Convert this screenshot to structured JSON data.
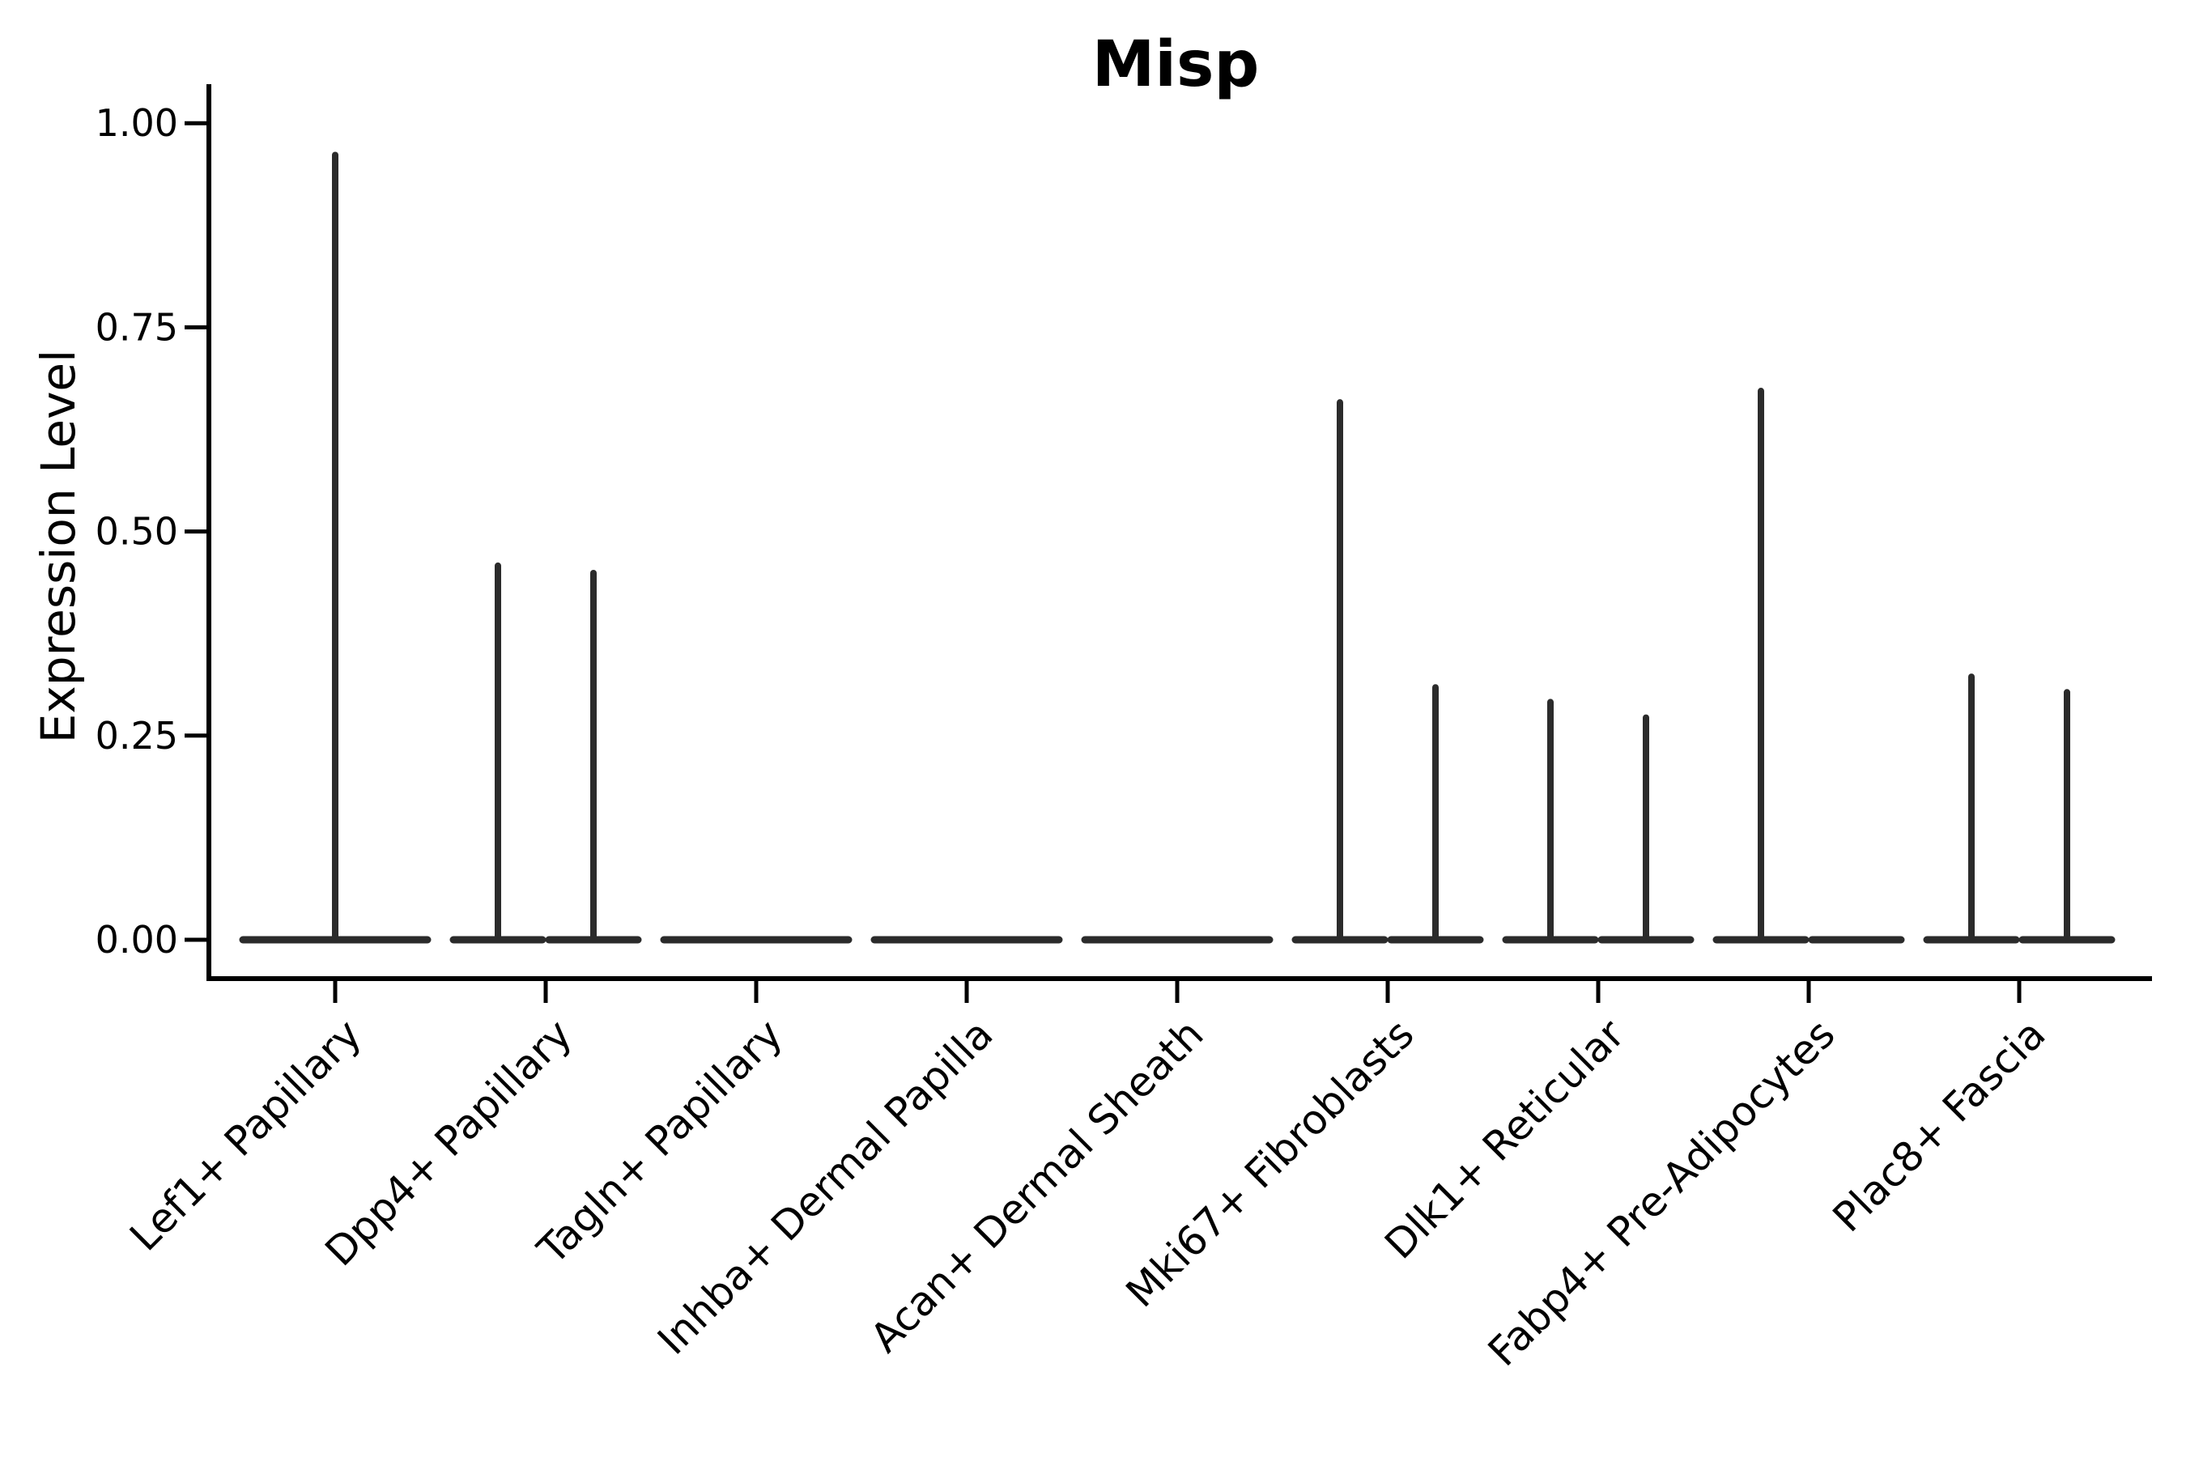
{
  "figure": {
    "title": "Misp",
    "background": "#ffffff"
  },
  "chart_data": {
    "type": "violin",
    "title": "Misp",
    "xlabel": "",
    "ylabel": "Expression Level",
    "ylim": [
      -0.048,
      1.048
    ],
    "yticks": [
      0.0,
      0.25,
      0.5,
      0.75,
      1.0
    ],
    "ytick_labels": [
      "0.00",
      "0.25",
      "0.50",
      "0.75",
      "1.00"
    ],
    "grid": false,
    "legend": "none",
    "violin_color": "#2b2b2b",
    "axis_color": "#000000",
    "categories": [
      "Lef1+ Papillary",
      "Dpp4+ Papillary",
      "Tagln+ Papillary",
      "Inhba+ Dermal Papilla",
      "Acan+ Dermal Sheath",
      "Mki67+ Fibroblasts",
      "Dlk1+ Reticular",
      "Fabp4+ Pre-Adipocytes",
      "Plac8+ Fascia"
    ],
    "violins": [
      {
        "category": "Lef1+ Papillary",
        "layout": "single",
        "peaks": [
          0.965
        ]
      },
      {
        "category": "Dpp4+ Papillary",
        "layout": "split",
        "peaks": [
          0.462,
          0.453
        ]
      },
      {
        "category": "Tagln+ Papillary",
        "layout": "single",
        "peaks": [
          0.0
        ]
      },
      {
        "category": "Inhba+ Dermal Papilla",
        "layout": "single",
        "peaks": [
          0.0
        ]
      },
      {
        "category": "Acan+ Dermal Sheath",
        "layout": "single",
        "peaks": [
          0.0
        ]
      },
      {
        "category": "Mki67+ Fibroblasts",
        "layout": "split",
        "peaks": [
          0.662,
          0.313
        ]
      },
      {
        "category": "Dlk1+ Reticular",
        "layout": "split",
        "peaks": [
          0.295,
          0.276
        ]
      },
      {
        "category": "Fabp4+ Pre-Adipocytes",
        "layout": "split",
        "peaks": [
          0.676,
          0.0
        ]
      },
      {
        "category": "Plac8+ Fascia",
        "layout": "split",
        "peaks": [
          0.326,
          0.307
        ]
      }
    ]
  }
}
